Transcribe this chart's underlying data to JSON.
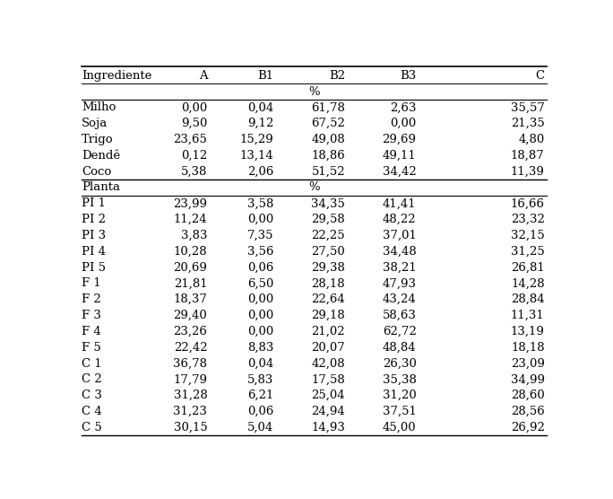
{
  "columns": [
    "Ingrediente",
    "A",
    "B1",
    "B2",
    "B3",
    "C"
  ],
  "concentrado_rows": [
    [
      "Milho",
      "0,00",
      "0,04",
      "61,78",
      "2,63",
      "35,57"
    ],
    [
      "Soja",
      "9,50",
      "9,12",
      "67,52",
      "0,00",
      "21,35"
    ],
    [
      "Trigo",
      "23,65",
      "15,29",
      "49,08",
      "29,69",
      "4,80"
    ],
    [
      "Dendê",
      "0,12",
      "13,14",
      "18,86",
      "49,11",
      "18,87"
    ],
    [
      "Coco",
      "5,38",
      "2,06",
      "51,52",
      "34,42",
      "11,39"
    ]
  ],
  "planta_rows": [
    [
      "PI 1",
      "23,99",
      "3,58",
      "34,35",
      "41,41",
      "16,66"
    ],
    [
      "PI 2",
      "11,24",
      "0,00",
      "29,58",
      "48,22",
      "23,32"
    ],
    [
      "PI 3",
      "3,83",
      "7,35",
      "22,25",
      "37,01",
      "32,15"
    ],
    [
      "PI 4",
      "10,28",
      "3,56",
      "27,50",
      "34,48",
      "31,25"
    ],
    [
      "PI 5",
      "20,69",
      "0,06",
      "29,38",
      "38,21",
      "26,81"
    ],
    [
      "F 1",
      "21,81",
      "6,50",
      "28,18",
      "47,93",
      "14,28"
    ],
    [
      "F 2",
      "18,37",
      "0,00",
      "22,64",
      "43,24",
      "28,84"
    ],
    [
      "F 3",
      "29,40",
      "0,00",
      "29,18",
      "58,63",
      "11,31"
    ],
    [
      "F 4",
      "23,26",
      "0,00",
      "21,02",
      "62,72",
      "13,19"
    ],
    [
      "F 5",
      "22,42",
      "8,83",
      "20,07",
      "48,84",
      "18,18"
    ],
    [
      "C 1",
      "36,78",
      "0,04",
      "42,08",
      "26,30",
      "23,09"
    ],
    [
      "C 2",
      "17,79",
      "5,83",
      "17,58",
      "35,38",
      "34,99"
    ],
    [
      "C 3",
      "31,28",
      "6,21",
      "25,04",
      "31,20",
      "28,60"
    ],
    [
      "C 4",
      "31,23",
      "0,06",
      "24,94",
      "37,51",
      "28,56"
    ],
    [
      "C 5",
      "30,15",
      "5,04",
      "14,93",
      "45,00",
      "26,92"
    ]
  ],
  "col_positions": [
    [
      0.01,
      "left"
    ],
    [
      0.275,
      "right"
    ],
    [
      0.415,
      "right"
    ],
    [
      0.565,
      "right"
    ],
    [
      0.715,
      "right"
    ],
    [
      0.985,
      "right"
    ]
  ],
  "font_size": 9.5,
  "background_color": "#ffffff"
}
